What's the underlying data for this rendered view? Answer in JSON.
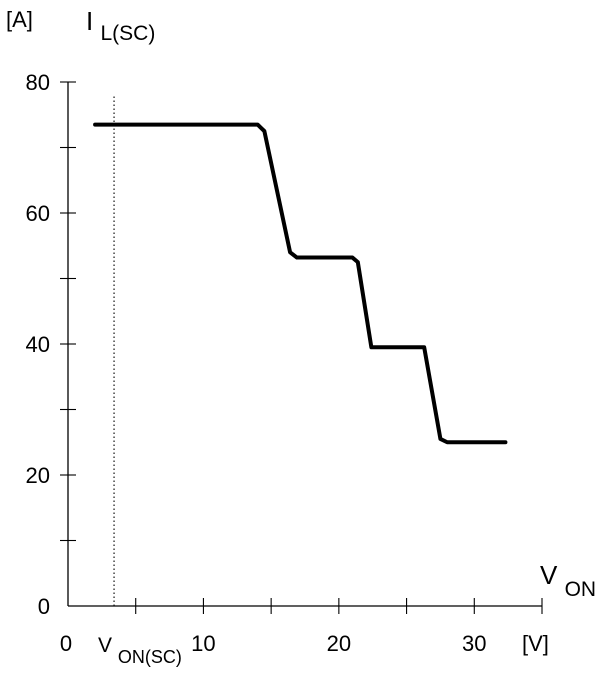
{
  "chart_data": {
    "type": "line",
    "title": "",
    "y_unit_label": "[A]",
    "y_axis_label": {
      "main": "I",
      "subscript": "L(SC)"
    },
    "x_axis_label": {
      "main": "V",
      "subscript": "ON"
    },
    "x_unit_label": "[V]",
    "marker_label": {
      "main": "V",
      "subscript": "ON(SC)"
    },
    "xlim": [
      0,
      35
    ],
    "ylim": [
      0,
      80
    ],
    "x_ticks_major": [
      0,
      10,
      20,
      30
    ],
    "x_tick_labels": [
      "0",
      "10",
      "20",
      "30"
    ],
    "x_ticks_minor": [
      5,
      15,
      25,
      35
    ],
    "y_ticks_major": [
      0,
      20,
      40,
      60,
      80
    ],
    "y_tick_labels": [
      "0",
      "20",
      "40",
      "60",
      "80"
    ],
    "y_ticks_minor": [
      10,
      30,
      50,
      70
    ],
    "grid": false,
    "marker_x": 3.4,
    "series": [
      {
        "values": [
          [
            2.0,
            73.5
          ],
          [
            14.0,
            73.5
          ],
          [
            14.5,
            72.5
          ],
          [
            16.4,
            54.0
          ],
          [
            16.9,
            53.2
          ],
          [
            21.0,
            53.2
          ],
          [
            21.4,
            52.5
          ],
          [
            22.4,
            39.5
          ],
          [
            26.3,
            39.5
          ],
          [
            27.5,
            25.5
          ],
          [
            28.0,
            25.0
          ],
          [
            32.3,
            25.0
          ]
        ],
        "color": "#000000"
      }
    ]
  }
}
